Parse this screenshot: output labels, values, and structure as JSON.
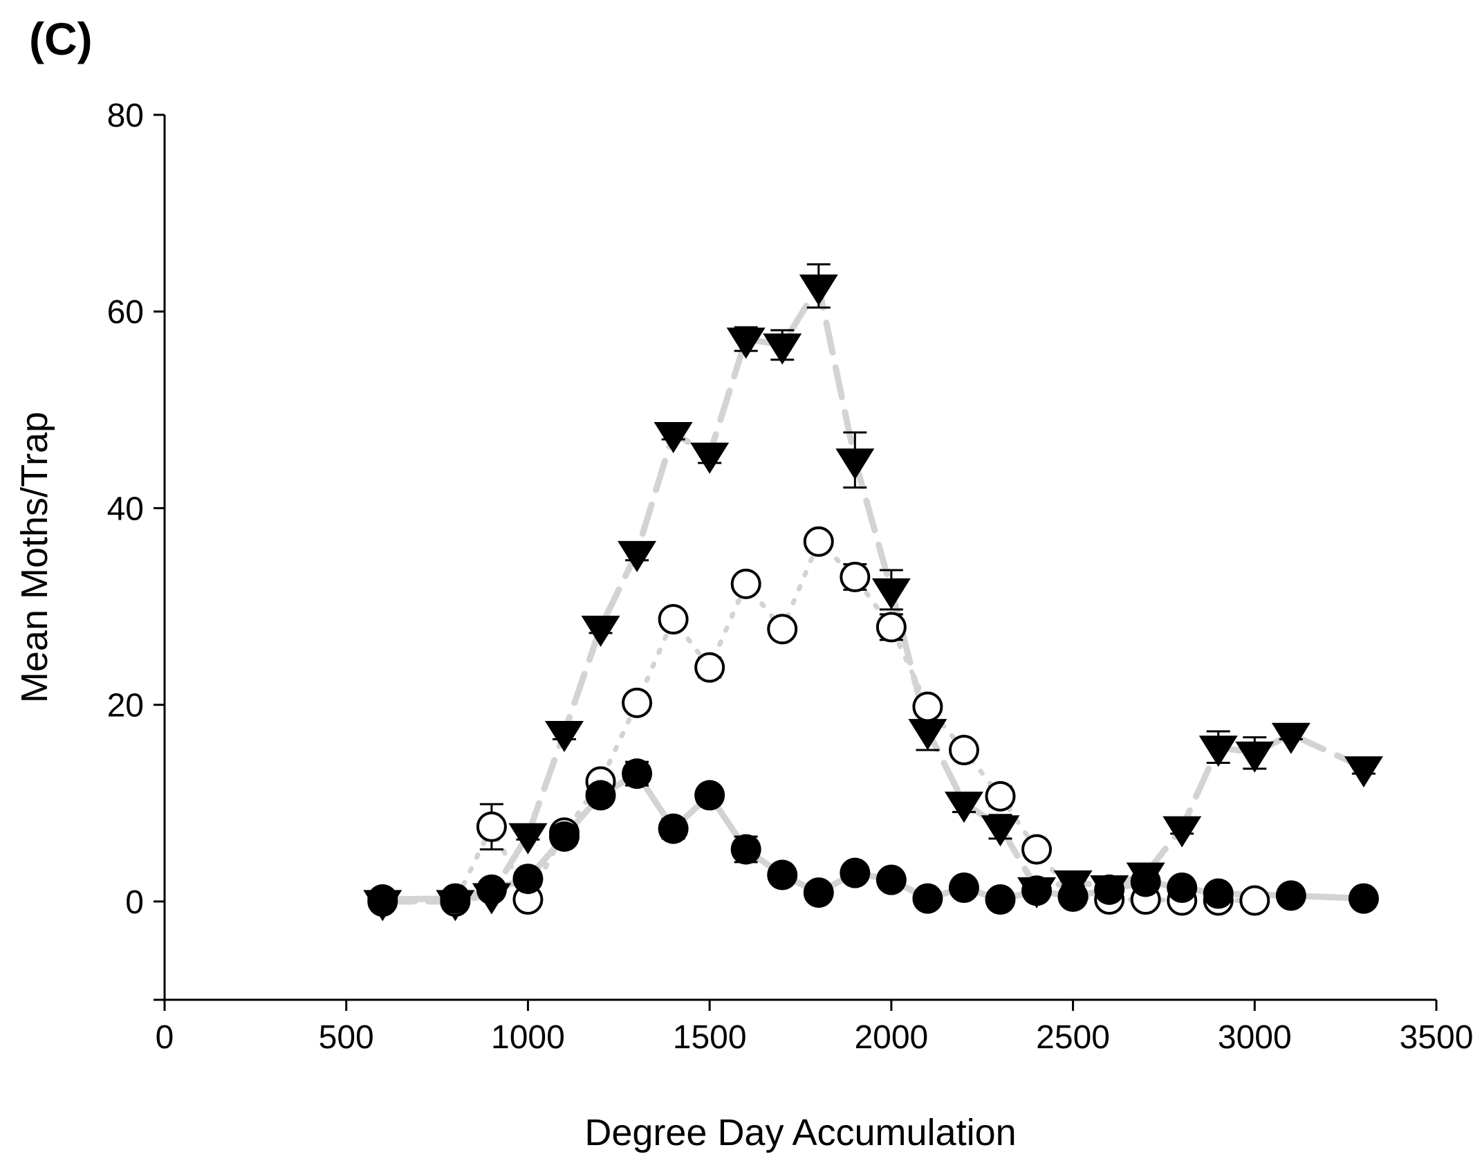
{
  "panel_label": "(C)",
  "chart_data": {
    "type": "scatter",
    "xlabel": "Degree Day Accumulation",
    "ylabel": "Mean Moths/Trap",
    "xlim": [
      0,
      3500
    ],
    "ylim": [
      -10,
      80
    ],
    "xticks": [
      "0",
      "500",
      "1000",
      "1500",
      "2000",
      "2500",
      "3000",
      "3500"
    ],
    "yticks": [
      "0",
      "20",
      "40",
      "60",
      "80"
    ],
    "grid": false,
    "legend": false,
    "line_color": "#d3d3d3",
    "marker_color": "#000000",
    "series": [
      {
        "marker": "triangle-down-filled",
        "line_style": "dashed",
        "points": [
          {
            "x": 600,
            "y": 0,
            "err": 0
          },
          {
            "x": 800,
            "y": 0,
            "err": 0
          },
          {
            "x": 900,
            "y": 0.7,
            "err": 0.4
          },
          {
            "x": 1000,
            "y": 6.8,
            "err": 0.5
          },
          {
            "x": 1100,
            "y": 17.2,
            "err": 0.7
          },
          {
            "x": 1200,
            "y": 27.9,
            "err": 0.6
          },
          {
            "x": 1300,
            "y": 35.5,
            "err": 0.8
          },
          {
            "x": 1400,
            "y": 47.6,
            "err": 0.6
          },
          {
            "x": 1500,
            "y": 45.5,
            "err": 0.9
          },
          {
            "x": 1600,
            "y": 57.2,
            "err": 1.2
          },
          {
            "x": 1700,
            "y": 56.6,
            "err": 1.5
          },
          {
            "x": 1800,
            "y": 62.6,
            "err": 2.2
          },
          {
            "x": 1900,
            "y": 44.9,
            "err": 2.8
          },
          {
            "x": 2000,
            "y": 31.7,
            "err": 2.0
          },
          {
            "x": 2100,
            "y": 17.4,
            "err": 2.0
          },
          {
            "x": 2200,
            "y": 10.0,
            "err": 0.9
          },
          {
            "x": 2300,
            "y": 7.6,
            "err": 1.2
          },
          {
            "x": 2400,
            "y": 1.3,
            "err": 0.4
          },
          {
            "x": 2500,
            "y": 2.0,
            "err": 0.4
          },
          {
            "x": 2600,
            "y": 1.5,
            "err": 0.4
          },
          {
            "x": 2700,
            "y": 2.8,
            "err": 0.5
          },
          {
            "x": 2800,
            "y": 7.5,
            "err": 0.6
          },
          {
            "x": 2900,
            "y": 15.7,
            "err": 1.6
          },
          {
            "x": 3000,
            "y": 15.1,
            "err": 1.6
          },
          {
            "x": 3100,
            "y": 17.0,
            "err": 0.5
          },
          {
            "x": 3300,
            "y": 13.6,
            "err": 0.6
          }
        ]
      },
      {
        "marker": "circle-open",
        "line_style": "dotted",
        "points": [
          {
            "x": 600,
            "y": 0,
            "err": 0
          },
          {
            "x": 800,
            "y": 0,
            "err": 0
          },
          {
            "x": 900,
            "y": 7.6,
            "err": 2.3
          },
          {
            "x": 1000,
            "y": 0.2,
            "err": 0
          },
          {
            "x": 1100,
            "y": 7.0,
            "err": 0.6
          },
          {
            "x": 1200,
            "y": 12.2,
            "err": 0.6
          },
          {
            "x": 1300,
            "y": 20.2,
            "err": 0.5
          },
          {
            "x": 1400,
            "y": 28.7,
            "err": 0.6
          },
          {
            "x": 1500,
            "y": 23.8,
            "err": 1.0
          },
          {
            "x": 1600,
            "y": 32.3,
            "err": 0.7
          },
          {
            "x": 1700,
            "y": 27.7,
            "err": 0.6
          },
          {
            "x": 1800,
            "y": 36.6,
            "err": 0.9
          },
          {
            "x": 1900,
            "y": 33.0,
            "err": 1.3
          },
          {
            "x": 2000,
            "y": 27.9,
            "err": 1.3
          },
          {
            "x": 2100,
            "y": 19.8,
            "err": 0.7
          },
          {
            "x": 2200,
            "y": 15.4,
            "err": 0.6
          },
          {
            "x": 2300,
            "y": 10.7,
            "err": 1.0
          },
          {
            "x": 2400,
            "y": 5.3,
            "err": 0.5
          },
          {
            "x": 2500,
            "y": 0.5,
            "err": 0.3
          },
          {
            "x": 2600,
            "y": 0.2,
            "err": 0
          },
          {
            "x": 2700,
            "y": 0.2,
            "err": 0
          },
          {
            "x": 2800,
            "y": 0.1,
            "err": 0
          },
          {
            "x": 2900,
            "y": 0.1,
            "err": 0
          },
          {
            "x": 3000,
            "y": 0.1,
            "err": 0
          }
        ]
      },
      {
        "marker": "circle-filled",
        "line_style": "solid",
        "points": [
          {
            "x": 600,
            "y": 0.2,
            "err": 0
          },
          {
            "x": 800,
            "y": 0.3,
            "err": 0
          },
          {
            "x": 900,
            "y": 1.2,
            "err": 0.4
          },
          {
            "x": 1000,
            "y": 2.3,
            "err": 0.4
          },
          {
            "x": 1100,
            "y": 6.6,
            "err": 0.6
          },
          {
            "x": 1200,
            "y": 10.8,
            "err": 0.8
          },
          {
            "x": 1300,
            "y": 13.0,
            "err": 1.2
          },
          {
            "x": 1400,
            "y": 7.4,
            "err": 1.0
          },
          {
            "x": 1500,
            "y": 10.8,
            "err": 0.8
          },
          {
            "x": 1600,
            "y": 5.3,
            "err": 1.3
          },
          {
            "x": 1700,
            "y": 2.7,
            "err": 0.3
          },
          {
            "x": 1800,
            "y": 0.9,
            "err": 0.2
          },
          {
            "x": 1900,
            "y": 2.9,
            "err": 0.3
          },
          {
            "x": 2000,
            "y": 2.2,
            "err": 0.3
          },
          {
            "x": 2100,
            "y": 0.3,
            "err": 0
          },
          {
            "x": 2200,
            "y": 1.4,
            "err": 0.3
          },
          {
            "x": 2300,
            "y": 0.2,
            "err": 0
          },
          {
            "x": 2400,
            "y": 1.1,
            "err": 0.3
          },
          {
            "x": 2500,
            "y": 0.5,
            "err": 0
          },
          {
            "x": 2600,
            "y": 1.2,
            "err": 0.3
          },
          {
            "x": 2700,
            "y": 2.0,
            "err": 0.3
          },
          {
            "x": 2800,
            "y": 1.4,
            "err": 0.3
          },
          {
            "x": 2900,
            "y": 0.8,
            "err": 0.2
          },
          {
            "x": 3100,
            "y": 0.6,
            "err": 0
          },
          {
            "x": 3300,
            "y": 0.3,
            "err": 0
          }
        ]
      }
    ]
  }
}
